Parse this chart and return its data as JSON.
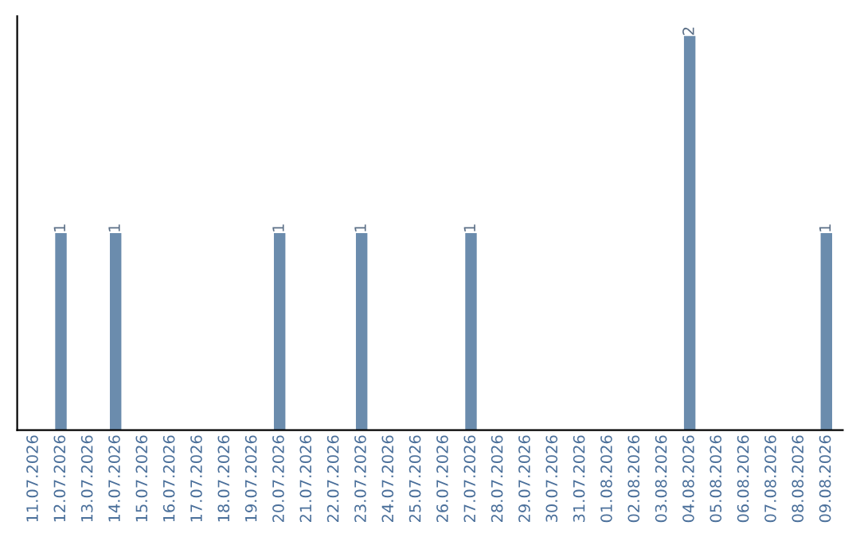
{
  "chart_data": {
    "type": "bar",
    "categories": [
      "11.07.2026",
      "12.07.2026",
      "13.07.2026",
      "14.07.2026",
      "15.07.2026",
      "16.07.2026",
      "17.07.2026",
      "18.07.2026",
      "19.07.2026",
      "20.07.2026",
      "21.07.2026",
      "22.07.2026",
      "23.07.2026",
      "24.07.2026",
      "25.07.2026",
      "26.07.2026",
      "27.07.2026",
      "28.07.2026",
      "29.07.2026",
      "30.07.2026",
      "31.07.2026",
      "01.08.2026",
      "02.08.2026",
      "03.08.2026",
      "04.08.2026",
      "05.08.2026",
      "06.08.2026",
      "07.08.2026",
      "08.08.2026",
      "09.08.2026"
    ],
    "values": [
      0,
      1,
      0,
      1,
      0,
      0,
      0,
      0,
      0,
      1,
      0,
      0,
      1,
      0,
      0,
      0,
      1,
      0,
      0,
      0,
      0,
      0,
      0,
      0,
      2,
      0,
      0,
      0,
      0,
      1
    ],
    "value_labels": [
      null,
      "1",
      null,
      "1",
      null,
      null,
      null,
      null,
      null,
      "1",
      null,
      null,
      "1",
      null,
      null,
      null,
      "1",
      null,
      null,
      null,
      null,
      null,
      null,
      null,
      "2",
      null,
      null,
      null,
      null,
      "1"
    ],
    "color": "#6b8cad",
    "ylim": [
      0,
      2.1
    ],
    "tick_labels": "x",
    "grid": false,
    "legend": false
  }
}
